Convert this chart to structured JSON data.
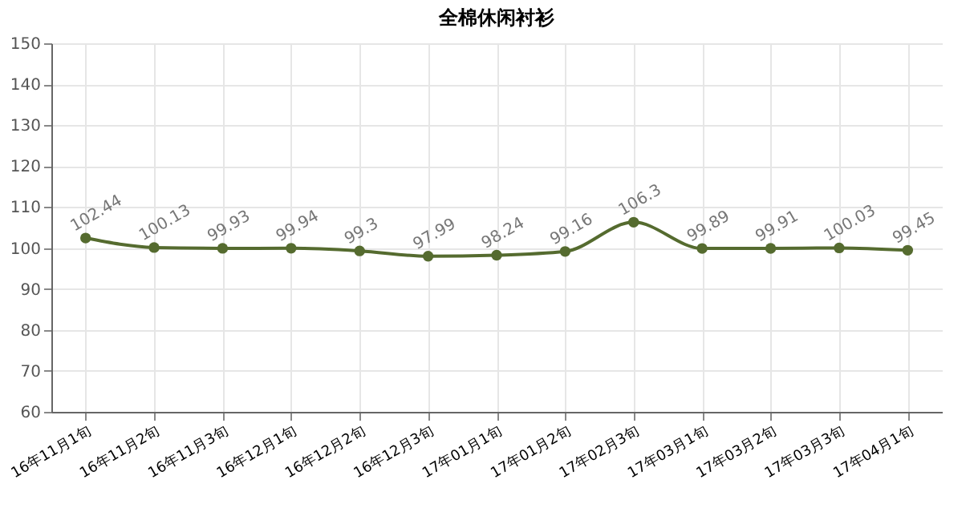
{
  "chart_data": {
    "type": "line",
    "title": "全棉休闲衬衫",
    "categories": [
      "16年11月1旬",
      "16年11月2旬",
      "16年11月3旬",
      "16年12月1旬",
      "16年12月2旬",
      "16年12月3旬",
      "17年01月1旬",
      "17年01月2旬",
      "17年02月3旬",
      "17年03月1旬",
      "17年03月2旬",
      "17年03月3旬",
      "17年04月1旬"
    ],
    "series": [
      {
        "color": "#556b2f",
        "values": [
          102.44,
          100.13,
          99.93,
          99.94,
          99.3,
          97.99,
          98.24,
          99.16,
          106.3,
          99.89,
          99.91,
          100.03,
          99.45
        ]
      }
    ],
    "ylim": [
      60,
      150
    ],
    "yticks": [
      60,
      70,
      80,
      90,
      100,
      110,
      120,
      130,
      140,
      150
    ],
    "grid": true,
    "marker": "circle",
    "line_style": "solid",
    "data_labels": true
  }
}
